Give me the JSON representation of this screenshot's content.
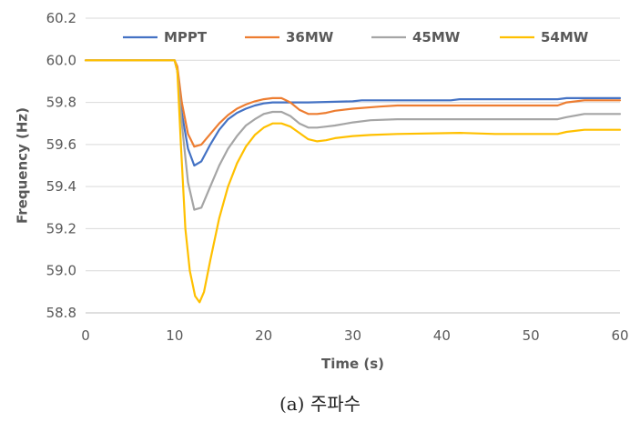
{
  "caption": "(a) 주파수",
  "chart_data": {
    "type": "line",
    "xlabel": "Time (s)",
    "ylabel": "Frequency (Hz)",
    "xlim": [
      0,
      60
    ],
    "ylim": [
      58.8,
      60.2
    ],
    "xticks": [
      0,
      10,
      20,
      30,
      40,
      50,
      60
    ],
    "yticks": [
      "58.8",
      "59.0",
      "59.2",
      "59.4",
      "59.6",
      "59.8",
      "60.0",
      "60.2"
    ],
    "grid": "horizontal",
    "legend": "top",
    "series": [
      {
        "name": "MPPT",
        "color": "#4472C4",
        "points": [
          [
            0,
            60.0
          ],
          [
            10,
            60.0
          ],
          [
            10.3,
            59.95
          ],
          [
            10.8,
            59.75
          ],
          [
            11.5,
            59.58
          ],
          [
            12.2,
            59.5
          ],
          [
            13,
            59.52
          ],
          [
            14,
            59.6
          ],
          [
            15,
            59.67
          ],
          [
            16,
            59.72
          ],
          [
            17,
            59.75
          ],
          [
            18,
            59.77
          ],
          [
            19,
            59.785
          ],
          [
            20,
            59.795
          ],
          [
            21,
            59.8
          ],
          [
            22,
            59.8
          ],
          [
            25,
            59.8
          ],
          [
            30,
            59.805
          ],
          [
            31,
            59.81
          ],
          [
            41,
            59.81
          ],
          [
            42,
            59.815
          ],
          [
            53,
            59.815
          ],
          [
            54,
            59.82
          ],
          [
            60,
            59.82
          ]
        ]
      },
      {
        "name": "36MW",
        "color": "#ED7D31",
        "points": [
          [
            0,
            60.0
          ],
          [
            10,
            60.0
          ],
          [
            10.3,
            59.97
          ],
          [
            10.8,
            59.8
          ],
          [
            11.5,
            59.65
          ],
          [
            12.2,
            59.59
          ],
          [
            13,
            59.6
          ],
          [
            14,
            59.65
          ],
          [
            15,
            59.7
          ],
          [
            16,
            59.74
          ],
          [
            17,
            59.77
          ],
          [
            18,
            59.79
          ],
          [
            19,
            59.805
          ],
          [
            20,
            59.815
          ],
          [
            21,
            59.82
          ],
          [
            22,
            59.82
          ],
          [
            23,
            59.8
          ],
          [
            24,
            59.765
          ],
          [
            25,
            59.745
          ],
          [
            26,
            59.745
          ],
          [
            27,
            59.75
          ],
          [
            28,
            59.76
          ],
          [
            30,
            59.77
          ],
          [
            33,
            59.78
          ],
          [
            35,
            59.785
          ],
          [
            53,
            59.785
          ],
          [
            54,
            59.8
          ],
          [
            56,
            59.81
          ],
          [
            60,
            59.81
          ]
        ]
      },
      {
        "name": "45MW",
        "color": "#A5A5A5",
        "points": [
          [
            0,
            60.0
          ],
          [
            10,
            60.0
          ],
          [
            10.3,
            59.95
          ],
          [
            10.8,
            59.7
          ],
          [
            11.5,
            59.42
          ],
          [
            12.2,
            59.29
          ],
          [
            13,
            59.3
          ],
          [
            14,
            59.4
          ],
          [
            15,
            59.5
          ],
          [
            16,
            59.58
          ],
          [
            17,
            59.64
          ],
          [
            18,
            59.69
          ],
          [
            19,
            59.72
          ],
          [
            20,
            59.745
          ],
          [
            21,
            59.755
          ],
          [
            22,
            59.755
          ],
          [
            23,
            59.735
          ],
          [
            24,
            59.7
          ],
          [
            25,
            59.68
          ],
          [
            26,
            59.68
          ],
          [
            27,
            59.685
          ],
          [
            28,
            59.69
          ],
          [
            30,
            59.705
          ],
          [
            32,
            59.715
          ],
          [
            35,
            59.72
          ],
          [
            53,
            59.72
          ],
          [
            54,
            59.73
          ],
          [
            56,
            59.745
          ],
          [
            60,
            59.745
          ]
        ]
      },
      {
        "name": "54MW",
        "color": "#FFC000",
        "points": [
          [
            0,
            60.0
          ],
          [
            10,
            60.0
          ],
          [
            10.3,
            59.95
          ],
          [
            10.7,
            59.6
          ],
          [
            11.2,
            59.2
          ],
          [
            11.7,
            59.0
          ],
          [
            12.3,
            58.88
          ],
          [
            12.8,
            58.85
          ],
          [
            13.3,
            58.9
          ],
          [
            14,
            59.05
          ],
          [
            15,
            59.25
          ],
          [
            16,
            59.4
          ],
          [
            17,
            59.51
          ],
          [
            18,
            59.59
          ],
          [
            19,
            59.645
          ],
          [
            20,
            59.68
          ],
          [
            21,
            59.7
          ],
          [
            22,
            59.7
          ],
          [
            23,
            59.685
          ],
          [
            24,
            59.655
          ],
          [
            25,
            59.625
          ],
          [
            26,
            59.615
          ],
          [
            27,
            59.62
          ],
          [
            28,
            59.63
          ],
          [
            30,
            59.64
          ],
          [
            32,
            59.645
          ],
          [
            35,
            59.65
          ],
          [
            42,
            59.655
          ],
          [
            46,
            59.65
          ],
          [
            53,
            59.65
          ],
          [
            54,
            59.66
          ],
          [
            56,
            59.67
          ],
          [
            60,
            59.67
          ]
        ]
      }
    ]
  }
}
